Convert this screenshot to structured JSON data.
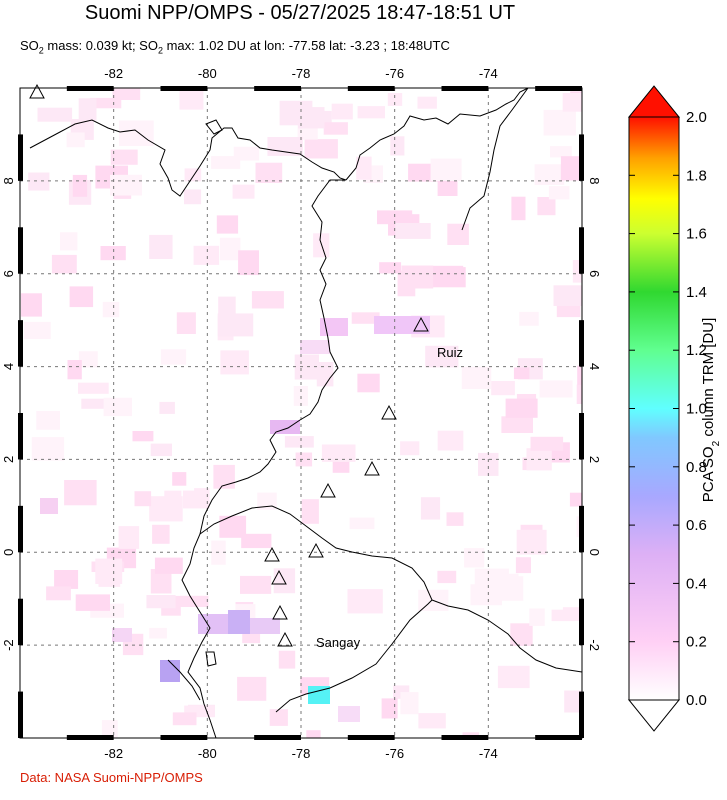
{
  "header": {
    "title": "Suomi NPP/OMPS - 05/27/2025 18:47-18:51 UT",
    "subtitle_pre": "SO",
    "subtitle_sub1": "2",
    "subtitle_mid": " mass: 0.039 kt; SO",
    "subtitle_sub2": "2",
    "subtitle_post": " max: 1.02 DU at lon: -77.58 lat: -3.23 ; 18:48UTC"
  },
  "map": {
    "lon_range": [
      -84,
      -72
    ],
    "lat_range": [
      -4,
      10
    ],
    "lon_ticks": [
      "-82",
      "-80",
      "-78",
      "-76",
      "-74"
    ],
    "lat_ticks": [
      "8",
      "6",
      "4",
      "2",
      "0",
      "-2"
    ],
    "grid": true,
    "volcano_labels": [
      "Ruiz",
      "Sangay"
    ]
  },
  "colorbar": {
    "title_pre": "PCA SO",
    "title_sub": "2",
    "title_post": " column TRM [DU]",
    "tick_labels": [
      "2.0",
      "1.8",
      "1.6",
      "1.4",
      "1.2",
      "1.0",
      "0.8",
      "0.6",
      "0.4",
      "0.2",
      "0.0"
    ],
    "colors": [
      "#ffffff",
      "#ffccff",
      "#d9a0f0",
      "#a9a9ff",
      "#80b8ff",
      "#66ffff",
      "#66ff99",
      "#33dd33",
      "#ccff33",
      "#ffff00",
      "#ffb300",
      "#ff6600",
      "#ff0000"
    ]
  },
  "footer": {
    "credit": "Data: NASA Suomi-NPP/OMPS"
  }
}
